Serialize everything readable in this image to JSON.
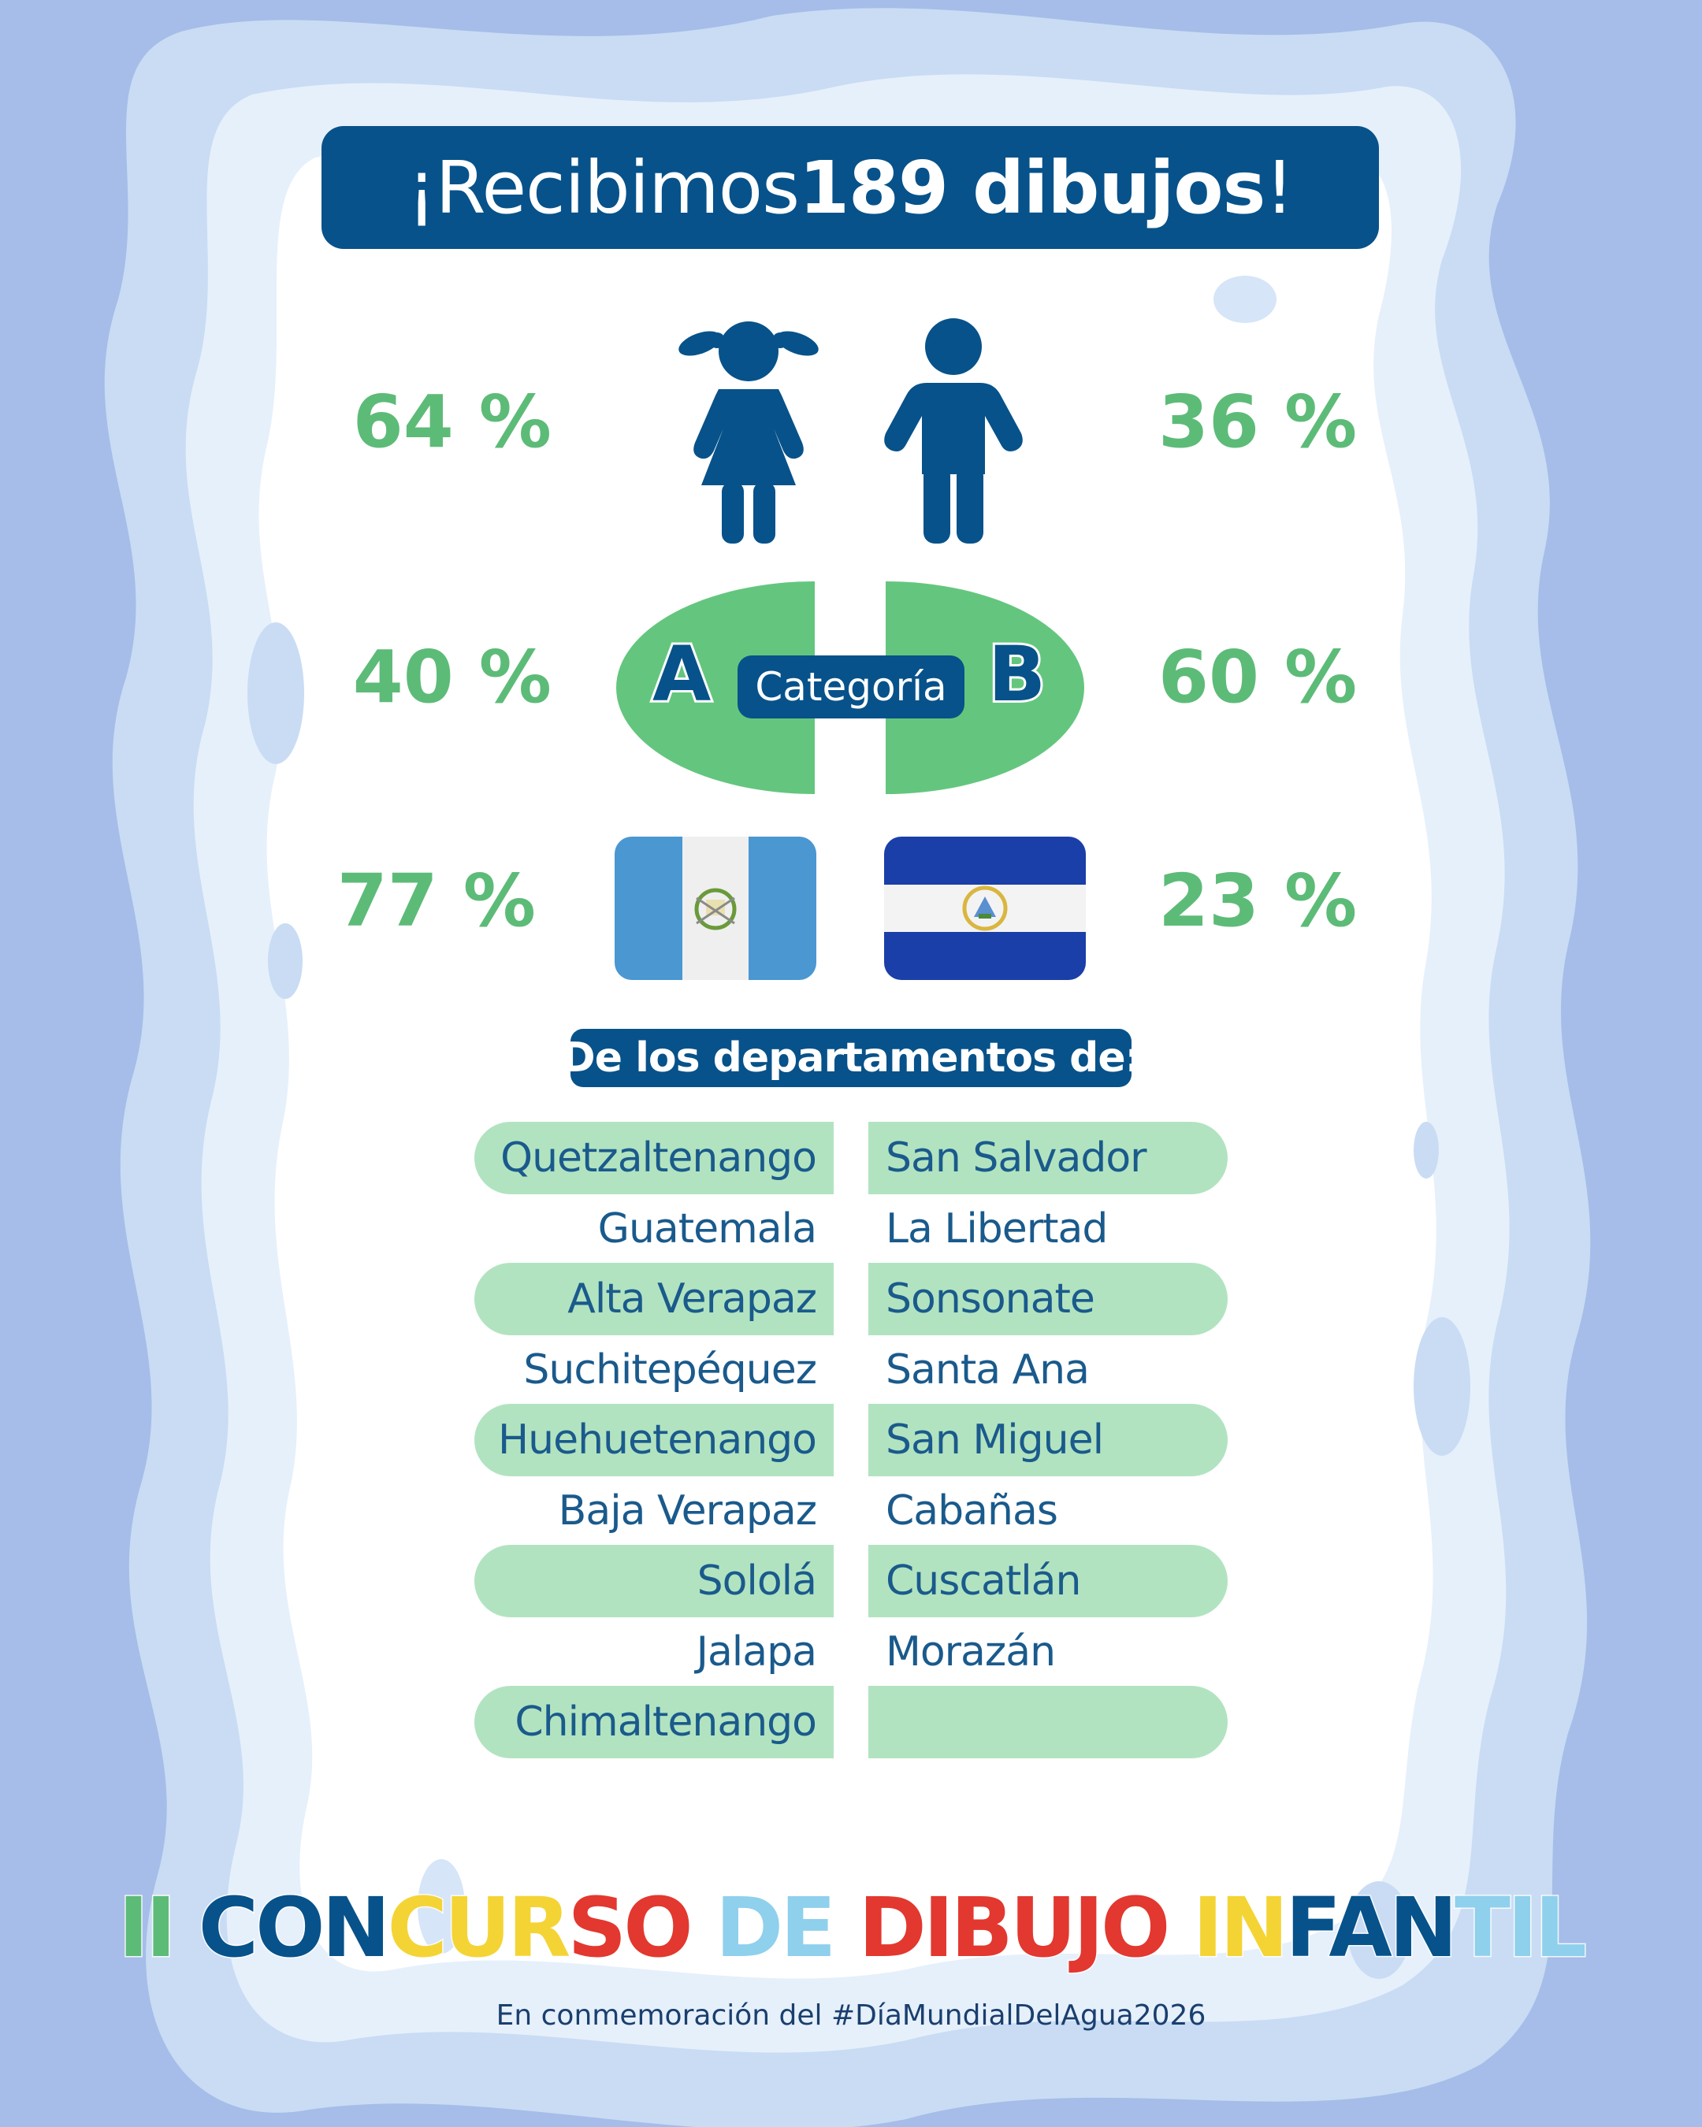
{
  "title": {
    "prefix": "¡Recibimos ",
    "bold": "189 dibujos",
    "suffix": "!"
  },
  "gender": {
    "girls_pct": "64 %",
    "boys_pct": "36 %",
    "girl_icon": "girl-icon",
    "boy_icon": "boy-icon"
  },
  "category": {
    "a_pct": "40 %",
    "b_pct": "60 %",
    "label": "Categoría",
    "a_letter": "A",
    "b_letter": "B"
  },
  "country": {
    "guatemala_pct": "77 %",
    "el_salvador_pct": "23 %",
    "guatemala_flag": "guatemala-flag-icon",
    "el_salvador_flag": "el-salvador-flag-icon"
  },
  "departments": {
    "heading": "De los departamentos de:",
    "guatemala": [
      "Quetzaltenango",
      "Guatemala",
      "Alta Verapaz",
      "Suchitepéquez",
      "Huehuetenango",
      "Baja Verapaz",
      "Sololá",
      "Jalapa",
      "Chimaltenango"
    ],
    "el_salvador": [
      "San Salvador",
      "La Libertad",
      "Sonsonate",
      "Santa Ana",
      "San Miguel",
      "Cabañas",
      "Cuscatlán",
      "Morazán",
      ""
    ]
  },
  "contest": {
    "segments": [
      {
        "text": "II ",
        "color": "#5dbb78"
      },
      {
        "text": "CON",
        "color": "#07528a"
      },
      {
        "text": "CUR",
        "color": "#f4d435"
      },
      {
        "text": "SO ",
        "color": "#e2382f"
      },
      {
        "text": "DE ",
        "color": "#8fd0ec"
      },
      {
        "text": "DIBUJO ",
        "color": "#e2382f"
      },
      {
        "text": "IN",
        "color": "#f4d435"
      },
      {
        "text": "FAN",
        "color": "#07528a"
      },
      {
        "text": "TIL",
        "color": "#8fd0ec"
      }
    ]
  },
  "footer": "En conmemoración del #DíaMundialDelAgua2026",
  "colors": {
    "navy": "#07528a",
    "green": "#5dbb78",
    "light_green": "#b2e3c0",
    "background": "#a5bde8"
  }
}
